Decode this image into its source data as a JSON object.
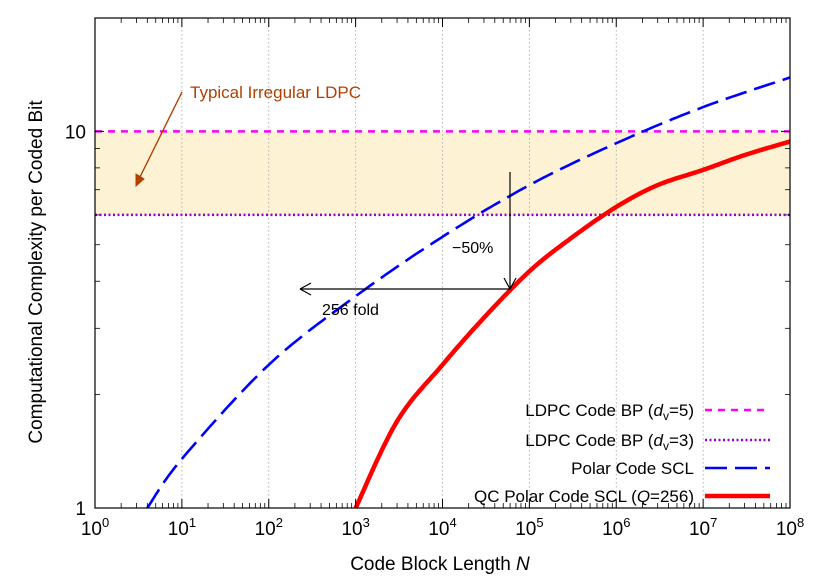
{
  "chart_data": {
    "type": "line",
    "xlabel": "Code Block Length N",
    "ylabel": "Computational Complexity per Coded Bit",
    "x_scale": "log",
    "y_scale": "log",
    "xlim": [
      1,
      100000000
    ],
    "ylim": [
      1,
      20
    ],
    "x_ticks": [
      "10^0",
      "10^1",
      "10^2",
      "10^3",
      "10^4",
      "10^5",
      "10^6",
      "10^7",
      "10^8"
    ],
    "y_ticks": [
      "1",
      "10"
    ],
    "grid": "vertical dotted at x decades",
    "legend_position": "bottom-right",
    "shaded_band": {
      "y_from": 6,
      "y_to": 10,
      "color": "#fdf3d4"
    },
    "series": [
      {
        "name": "LDPC Code BP (d_v=5)",
        "style": "dashed",
        "color": "#ff00ff",
        "x": [
          1,
          100000000
        ],
        "y": [
          10,
          10
        ]
      },
      {
        "name": "LDPC Code BP (d_v=3)",
        "style": "dotted",
        "color": "#9400d3",
        "x": [
          1,
          100000000
        ],
        "y": [
          6,
          6
        ]
      },
      {
        "name": "Polar Code SCL",
        "style": "long-dash",
        "color": "#0000ff",
        "x": [
          4,
          10,
          100,
          1000,
          10000,
          100000,
          1000000,
          10000000,
          100000000
        ],
        "y": [
          1.0,
          1.35,
          2.4,
          3.65,
          5.25,
          7.2,
          9.3,
          11.6,
          13.9
        ]
      },
      {
        "name": "QC Polar Code SCL (Q=256)",
        "style": "solid",
        "color": "#ff0000",
        "x": [
          1000,
          3000,
          10000,
          30000,
          100000,
          300000,
          1000000,
          3000000,
          10000000,
          30000000,
          100000000
        ],
        "y": [
          1.0,
          1.7,
          2.4,
          3.2,
          4.25,
          5.2,
          6.3,
          7.2,
          7.9,
          8.65,
          9.4
        ]
      }
    ],
    "annotations": [
      {
        "text": "Typical Irregular LDPC",
        "color": "#b24000"
      },
      {
        "text": "256 fold"
      },
      {
        "text": "−50%"
      }
    ],
    "legend": [
      {
        "prefix": "LDPC Code BP (",
        "italic": "d",
        "sub": "v",
        "suffix": "=5)"
      },
      {
        "prefix": "LDPC Code BP (",
        "italic": "d",
        "sub": "v",
        "suffix": "=3)"
      },
      {
        "prefix": "Polar Code SCL",
        "italic": "",
        "sub": "",
        "suffix": ""
      },
      {
        "prefix": "QC Polar Code SCL (",
        "italic": "Q",
        "sub": "",
        "suffix": "=256)"
      }
    ],
    "xlabel_parts": {
      "prefix": "Code Block Length ",
      "italic": "N"
    }
  }
}
